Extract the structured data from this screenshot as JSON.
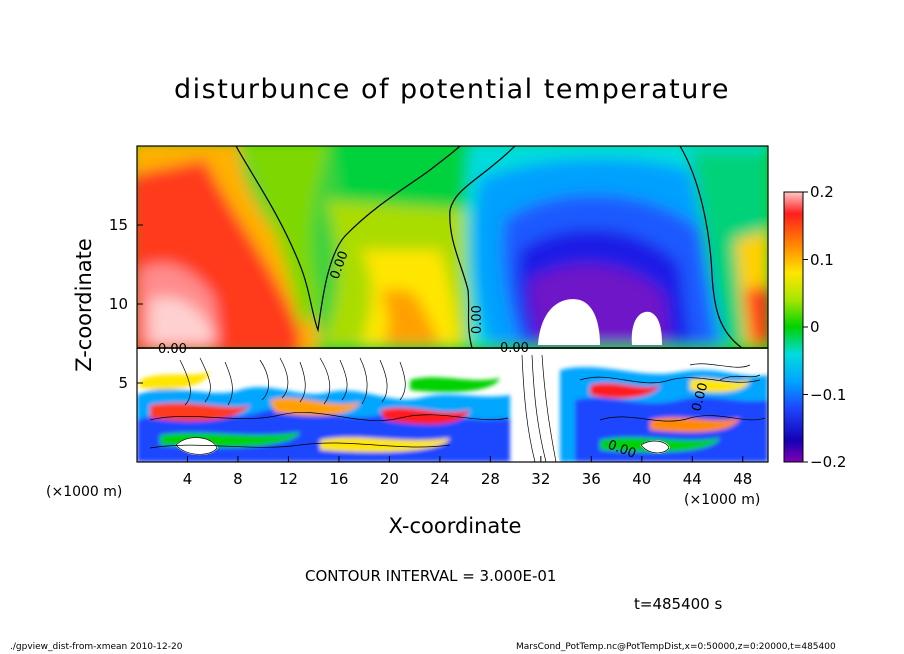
{
  "chart_data": {
    "type": "heatmap",
    "title": "disturbunce of potential temperature",
    "xlabel": "X-coordinate",
    "ylabel": "Z-coordinate",
    "x_unit_label": "(×1000 m)",
    "xlim": [
      0,
      50
    ],
    "ylim": [
      0,
      20
    ],
    "x_ticks": [
      "4",
      "8",
      "12",
      "16",
      "20",
      "24",
      "28",
      "32",
      "36",
      "40",
      "44",
      "48"
    ],
    "y_ticks": [
      "5",
      "10",
      "15"
    ],
    "colorbar": {
      "range": [
        -0.2,
        0.2
      ],
      "tick_labels": [
        "0.2",
        "0.1",
        "0",
        "−0.1",
        "−0.2"
      ],
      "tick_values": [
        0.2,
        0.1,
        0,
        -0.1,
        -0.2
      ]
    },
    "contour_labels": [
      "0.00",
      "0.00",
      "0.00",
      "0.00",
      "0.00",
      "0.00"
    ],
    "contour_interval_text": "CONTOUR INTERVAL = 3.000E-01",
    "time_text": "t=485400 s",
    "footer_left": "./gpview_dist-from-xmean  2010-12-20",
    "footer_right": "MarsCond_PotTemp.nc@PotTempDist,x=0:50000,z=0:20000,t=485400"
  }
}
